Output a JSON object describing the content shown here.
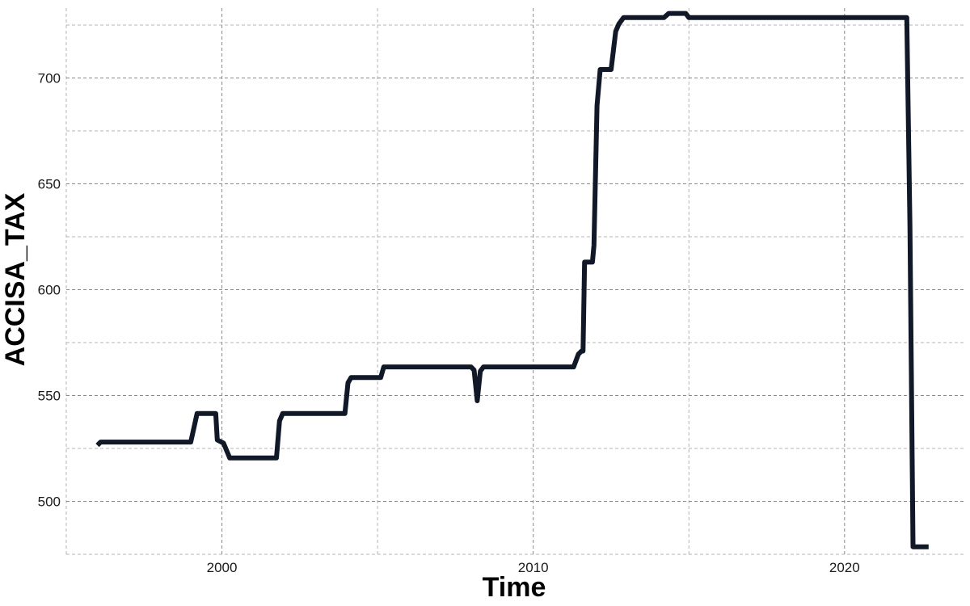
{
  "chart_data": {
    "type": "line",
    "title": "",
    "xlabel": "Time",
    "ylabel": "ACCISA_TAX",
    "xlim": [
      1995,
      2023.9
    ],
    "ylim": [
      475,
      733
    ],
    "x_major_ticks": [
      2000,
      2010,
      2020
    ],
    "x_minor_ticks": [
      1995,
      2005,
      2015
    ],
    "y_major_ticks": [
      500,
      550,
      600,
      650,
      700
    ],
    "y_minor_ticks": [
      475,
      525,
      575,
      625,
      675,
      725
    ],
    "x_tick_labels": [
      "2000",
      "2010",
      "2020"
    ],
    "y_tick_labels": [
      "500",
      "550",
      "600",
      "650",
      "700"
    ],
    "grid": true,
    "legend": "none",
    "line_color": "#111827",
    "series": [
      {
        "values": [
          [
            1996.0,
            526.5
          ],
          [
            1996.1,
            528
          ],
          [
            1999.0,
            528
          ],
          [
            1999.2,
            541.5
          ],
          [
            1999.8,
            541.5
          ],
          [
            1999.85,
            529
          ],
          [
            2000.05,
            527.5
          ],
          [
            2000.25,
            520.5
          ],
          [
            2001.75,
            520.5
          ],
          [
            2001.85,
            538
          ],
          [
            2001.95,
            541.5
          ],
          [
            2003.95,
            541.5
          ],
          [
            2004.05,
            556
          ],
          [
            2004.15,
            558.5
          ],
          [
            2005.1,
            558.5
          ],
          [
            2005.2,
            563.5
          ],
          [
            2008.0,
            563.5
          ],
          [
            2008.1,
            562
          ],
          [
            2008.2,
            547.5
          ],
          [
            2008.3,
            561.5
          ],
          [
            2008.4,
            563.5
          ],
          [
            2011.3,
            563.5
          ],
          [
            2011.45,
            569.5
          ],
          [
            2011.55,
            571
          ],
          [
            2011.6,
            571
          ],
          [
            2011.65,
            613
          ],
          [
            2011.9,
            613
          ],
          [
            2011.95,
            621
          ],
          [
            2012.05,
            687
          ],
          [
            2012.15,
            704
          ],
          [
            2012.5,
            704
          ],
          [
            2012.65,
            722
          ],
          [
            2012.75,
            725.5
          ],
          [
            2012.9,
            728.5
          ],
          [
            2014.2,
            728.5
          ],
          [
            2014.35,
            730.5
          ],
          [
            2014.9,
            730.5
          ],
          [
            2015.0,
            728.5
          ],
          [
            2022.0,
            728.5
          ],
          [
            2022.1,
            630
          ],
          [
            2022.2,
            478.5
          ],
          [
            2022.7,
            478.5
          ]
        ]
      }
    ]
  }
}
